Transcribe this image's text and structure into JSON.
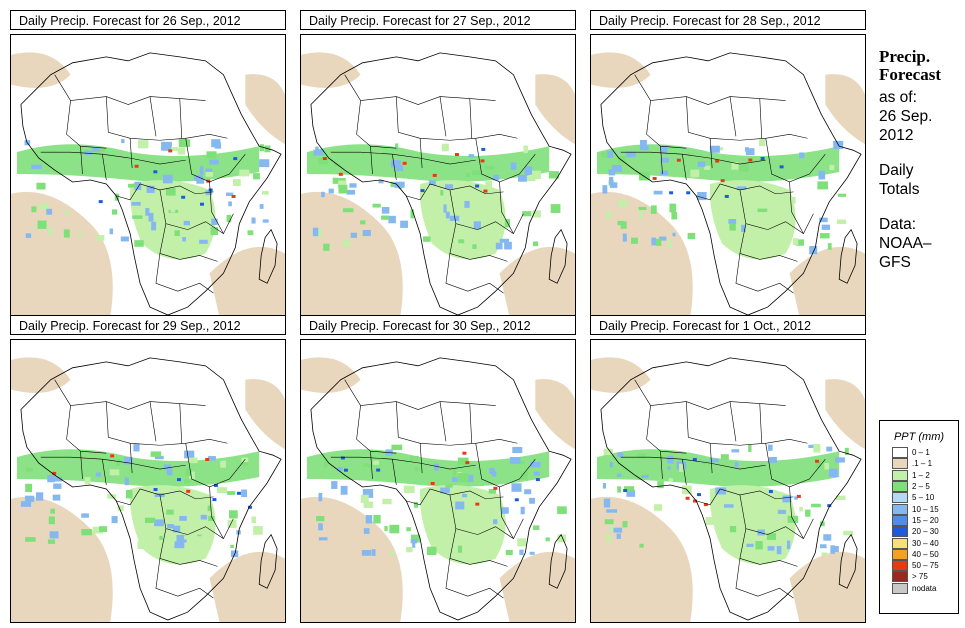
{
  "panels": [
    {
      "title": "Daily Precip. Forecast for  26 Sep., 2012",
      "variant": 0
    },
    {
      "title": "Daily Precip. Forecast for  27 Sep., 2012",
      "variant": 1
    },
    {
      "title": "Daily Precip. Forecast for  28 Sep., 2012",
      "variant": 2
    },
    {
      "title": "Daily Precip. Forecast for  29 Sep., 2012",
      "variant": 3
    },
    {
      "title": "Daily Precip. Forecast for  30 Sep., 2012",
      "variant": 4
    },
    {
      "title": "Daily Precip. Forecast for  1 Oct., 2012",
      "variant": 5
    }
  ],
  "side": {
    "heading_line1": "Precip.",
    "heading_line2": "Forecast",
    "asof_label": "as of:",
    "date_line1": "26 Sep.",
    "date_line2": "2012",
    "daily_line1": "Daily",
    "daily_line2": "Totals",
    "data_label": "Data:",
    "data_source_line1": "NOAA–",
    "data_source_line2": "GFS"
  },
  "legend": {
    "title": "PPT (mm)",
    "entries": [
      {
        "label": "0 – 1",
        "color": "#ffffff"
      },
      {
        "label": ".1 – 1",
        "color": "#e8d7bd"
      },
      {
        "label": "1 – 2",
        "color": "#c2f0a8"
      },
      {
        "label": "2 – 5",
        "color": "#7fe07a"
      },
      {
        "label": "5 – 10",
        "color": "#b4d8f5"
      },
      {
        "label": "10 – 15",
        "color": "#86b8f0"
      },
      {
        "label": "15 – 20",
        "color": "#4f8ee8"
      },
      {
        "label": "20 – 30",
        "color": "#1e5adc"
      },
      {
        "label": "30 – 40",
        "color": "#f6e07a"
      },
      {
        "label": "40 – 50",
        "color": "#f5a020"
      },
      {
        "label": "50 – 75",
        "color": "#e83a12"
      },
      {
        "label": "> 75",
        "color": "#9a2a20"
      },
      {
        "label": "nodata",
        "color": "#c8c8c8"
      }
    ]
  },
  "colors": {
    "dry": "#e8d7bd",
    "light": "#c2f0a8",
    "moderate": "#7fe07a",
    "heavy": "#86b8f0",
    "very_heavy": "#1e5adc",
    "extreme": "#e83a12",
    "borders": "#000000"
  }
}
